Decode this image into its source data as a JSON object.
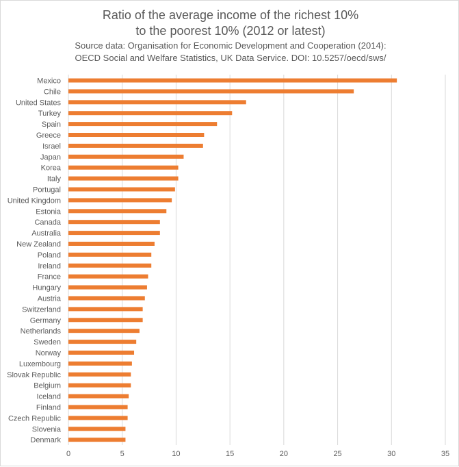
{
  "chart_data": {
    "type": "bar",
    "orientation": "horizontal",
    "title": "Ratio of the average income of the richest 10%",
    "title_line2": "to the poorest 10% (2012 or latest)",
    "subtitle": "Source data: Organisation for Economic Development and Cooperation (2014):",
    "subtitle_line2": "OECD Social and Welfare Statistics, UK Data Service. DOI: 10.5257/oecd/sws/",
    "bar_color": "#ed7d31",
    "grid": true,
    "xlim": [
      0,
      35
    ],
    "x_ticks": [
      "0",
      "5",
      "10",
      "15",
      "20",
      "25",
      "30",
      "35"
    ],
    "categories": [
      "Mexico",
      "Chile",
      "United States",
      "Turkey",
      "Spain",
      "Greece",
      "Israel",
      "Japan",
      "Korea",
      "Italy",
      "Portugal",
      "United Kingdom",
      "Estonia",
      "Canada",
      "Australia",
      "New Zealand",
      "Poland",
      "Ireland",
      "France",
      "Hungary",
      "Austria",
      "Switzerland",
      "Germany",
      "Netherlands",
      "Sweden",
      "Norway",
      "Luxembourg",
      "Slovak Republic",
      "Belgium",
      "Iceland",
      "Finland",
      "Czech Republic",
      "Slovenia",
      "Denmark"
    ],
    "values": [
      30.5,
      26.5,
      16.5,
      15.2,
      13.8,
      12.6,
      12.5,
      10.7,
      10.2,
      10.2,
      9.9,
      9.6,
      9.1,
      8.5,
      8.5,
      8.0,
      7.7,
      7.7,
      7.4,
      7.3,
      7.1,
      6.9,
      6.9,
      6.6,
      6.3,
      6.1,
      5.9,
      5.8,
      5.8,
      5.6,
      5.5,
      5.5,
      5.3,
      5.3
    ]
  }
}
